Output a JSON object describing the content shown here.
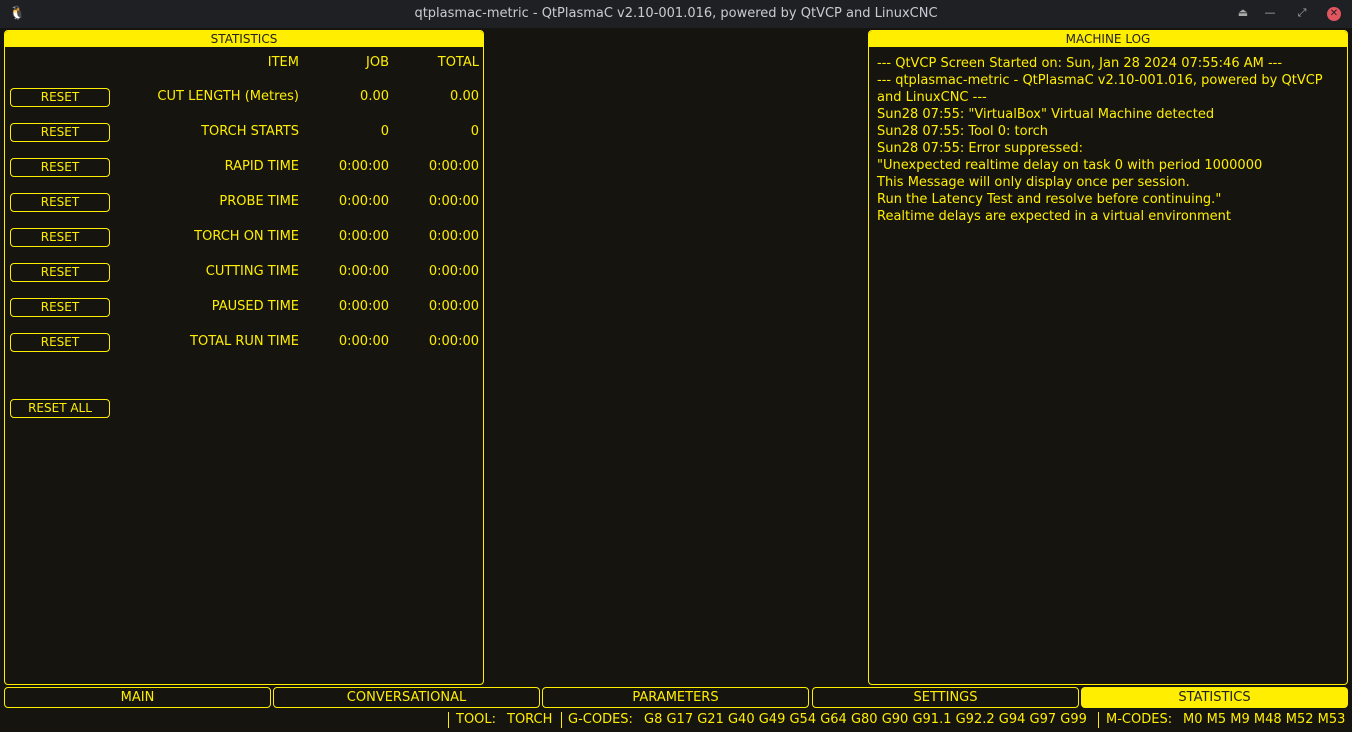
{
  "window": {
    "title": "qtplasmac-metric - QtPlasmaC v2.10-001.016, powered by QtVCP and LinuxCNC"
  },
  "statistics": {
    "title": "STATISTICS",
    "headers": {
      "item": "ITEM",
      "job": "JOB",
      "total": "TOTAL"
    },
    "reset_label": "RESET",
    "reset_all_label": "RESET ALL",
    "rows": [
      {
        "item": "CUT LENGTH (Metres)",
        "job": "0.00",
        "total": "0.00"
      },
      {
        "item": "TORCH STARTS",
        "job": "0",
        "total": "0"
      },
      {
        "item": "RAPID TIME",
        "job": "0:00:00",
        "total": "0:00:00"
      },
      {
        "item": "PROBE TIME",
        "job": "0:00:00",
        "total": "0:00:00"
      },
      {
        "item": "TORCH ON TIME",
        "job": "0:00:00",
        "total": "0:00:00"
      },
      {
        "item": "CUTTING TIME",
        "job": "0:00:00",
        "total": "0:00:00"
      },
      {
        "item": "PAUSED TIME",
        "job": "0:00:00",
        "total": "0:00:00"
      },
      {
        "item": "TOTAL RUN TIME",
        "job": "0:00:00",
        "total": "0:00:00"
      }
    ]
  },
  "machine_log": {
    "title": "MACHINE LOG",
    "lines": [
      "--- QtVCP Screen Started on: Sun, Jan 28 2024 07:55:46 AM ---",
      "--- qtplasmac-metric - QtPlasmaC v2.10-001.016, powered by QtVCP and LinuxCNC ---",
      "Sun28 07:55: \"VirtualBox\" Virtual Machine detected",
      "Sun28 07:55: Tool 0: torch",
      "Sun28 07:55: Error suppressed:",
      "\"Unexpected realtime delay on task 0 with period 1000000",
      "This Message will only display once per session.",
      "Run the Latency Test and resolve before continuing.\"",
      "Realtime delays are expected in a virtual environment"
    ]
  },
  "tabs": [
    {
      "label": "MAIN",
      "active": false
    },
    {
      "label": "CONVERSATIONAL",
      "active": false
    },
    {
      "label": "PARAMETERS",
      "active": false
    },
    {
      "label": "SETTINGS",
      "active": false
    },
    {
      "label": "STATISTICS",
      "active": true
    }
  ],
  "status": {
    "tool_label": "TOOL:",
    "tool": "TORCH",
    "gcodes_label": "G-CODES:",
    "gcodes": "G8 G17 G21 G40 G49 G54 G64 G80 G90 G91.1 G92.2 G94 G97 G99",
    "mcodes_label": "M-CODES:",
    "mcodes": "M0 M5 M9 M48 M52 M53"
  },
  "colors": {
    "accent": "#ffee00",
    "background": "#15140f",
    "close": "#e0555f"
  }
}
